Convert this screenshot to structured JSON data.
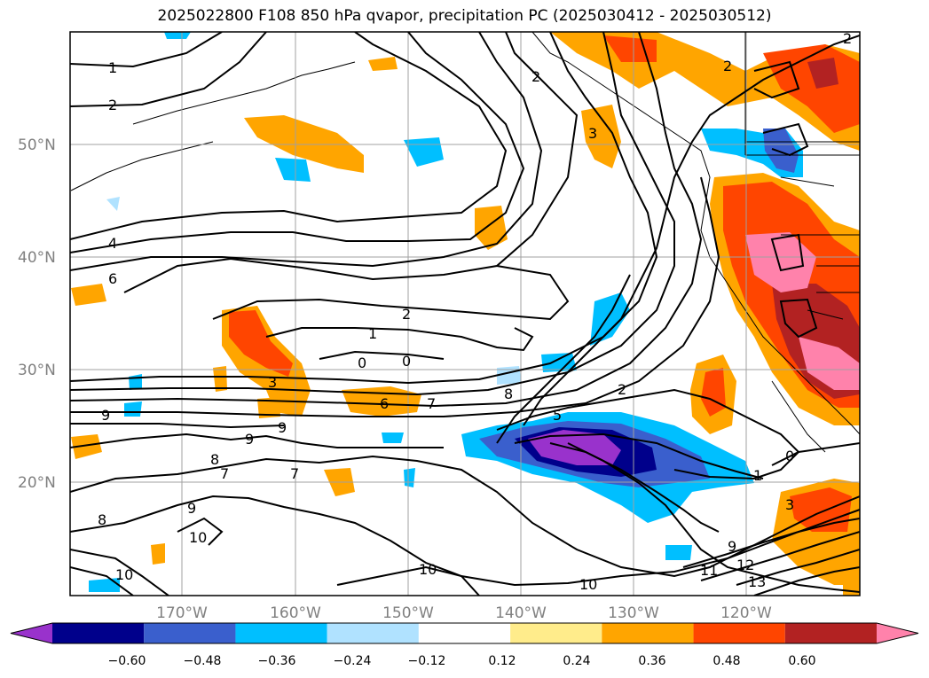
{
  "title": "2025022800 F108 850 hPa qvapor, precipitation PC (2025030412 - 2025030512)",
  "map": {
    "lat_labels": [
      "50°N",
      "40°N",
      "30°N",
      "20°N"
    ],
    "lon_labels": [
      "170°W",
      "160°W",
      "150°W",
      "140°W",
      "130°W",
      "120°W"
    ],
    "lat_range": [
      10,
      60
    ],
    "lon_range": [
      -180,
      -110
    ],
    "grid": true
  },
  "colorbar": {
    "colors": [
      "#9932cc",
      "#00008b",
      "#3a5fcd",
      "#00bfff",
      "#b0e2ff",
      "#ffffff",
      "#ffec8b",
      "#ffa500",
      "#ff4500",
      "#b22222",
      "#ff82ab"
    ],
    "tick_labels": [
      "−0.60",
      "−0.48",
      "−0.36",
      "−0.24",
      "−0.12",
      "0.12",
      "0.24",
      "0.36",
      "0.48",
      "0.60"
    ]
  },
  "contour_labels": [
    "1",
    "2",
    "4",
    "6",
    "2",
    "1",
    "0",
    "0",
    "3",
    "6",
    "7",
    "8",
    "9",
    "9",
    "9",
    "8",
    "7",
    "7",
    "9",
    "8",
    "10",
    "10",
    "10",
    "2",
    "3",
    "2",
    "5",
    "1",
    "0",
    "3",
    "9",
    "11",
    "12",
    "13",
    "2",
    "2"
  ]
}
